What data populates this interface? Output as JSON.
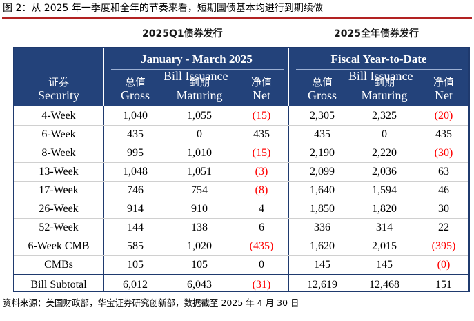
{
  "figure": {
    "title": "图 2：从 2025 年一季度和全年的节奏来看，短期国债基本均进行到期续做",
    "subheader_left": "2025Q1债券发行",
    "subheader_right": "2025全年债券发行",
    "source": "资料来源：美国财政部，华宝证券研究创新部，数据截至 2025 年 4 月 30 日"
  },
  "table": {
    "group_left": "January - March 2025",
    "group_right": "Fiscal Year-to-Date",
    "bill_issuance": "Bill Issuance",
    "columns": {
      "security_zh": "证券",
      "security_en": "Security",
      "gross_zh": "总值",
      "gross_en": "Gross",
      "maturing_zh": "到期",
      "maturing_en": "Maturing",
      "net_zh": "净值",
      "net_en": "Net"
    },
    "rows": [
      {
        "security": "4-Week",
        "q_gross": "1,040",
        "q_mat": "1,055",
        "q_net": "(15)",
        "q_neg": true,
        "f_gross": "2,305",
        "f_mat": "2,325",
        "f_net": "(20)",
        "f_neg": true
      },
      {
        "security": "6-Week",
        "q_gross": "435",
        "q_mat": "0",
        "q_net": "435",
        "q_neg": false,
        "f_gross": "435",
        "f_mat": "0",
        "f_net": "435",
        "f_neg": false
      },
      {
        "security": "8-Week",
        "q_gross": "995",
        "q_mat": "1,010",
        "q_net": "(15)",
        "q_neg": true,
        "f_gross": "2,190",
        "f_mat": "2,220",
        "f_net": "(30)",
        "f_neg": true
      },
      {
        "security": "13-Week",
        "q_gross": "1,048",
        "q_mat": "1,051",
        "q_net": "(3)",
        "q_neg": true,
        "f_gross": "2,099",
        "f_mat": "2,036",
        "f_net": "63",
        "f_neg": false
      },
      {
        "security": "17-Week",
        "q_gross": "746",
        "q_mat": "754",
        "q_net": "(8)",
        "q_neg": true,
        "f_gross": "1,640",
        "f_mat": "1,594",
        "f_net": "46",
        "f_neg": false
      },
      {
        "security": "26-Week",
        "q_gross": "914",
        "q_mat": "910",
        "q_net": "4",
        "q_neg": false,
        "f_gross": "1,850",
        "f_mat": "1,820",
        "f_net": "30",
        "f_neg": false
      },
      {
        "security": "52-Week",
        "q_gross": "144",
        "q_mat": "138",
        "q_net": "6",
        "q_neg": false,
        "f_gross": "336",
        "f_mat": "314",
        "f_net": "22",
        "f_neg": false
      },
      {
        "security": "6-Week CMB",
        "q_gross": "585",
        "q_mat": "1,020",
        "q_net": "(435)",
        "q_neg": true,
        "f_gross": "1,620",
        "f_mat": "2,015",
        "f_net": "(395)",
        "f_neg": true
      },
      {
        "security": "CMBs",
        "q_gross": "105",
        "q_mat": "105",
        "q_net": "0",
        "q_neg": false,
        "f_gross": "145",
        "f_mat": "145",
        "f_net": "(0)",
        "f_neg": true
      }
    ],
    "subtotal": {
      "security": "Bill Subtotal",
      "q_gross": "6,012",
      "q_mat": "6,043",
      "q_net": "(31)",
      "q_neg": true,
      "f_gross": "12,619",
      "f_mat": "12,468",
      "f_net": "151",
      "f_neg": false
    }
  },
  "colors": {
    "header_bg": "#23427a",
    "border": "#1f3a6e",
    "negative": "#ff0000",
    "accent_rule": "#b22222"
  }
}
